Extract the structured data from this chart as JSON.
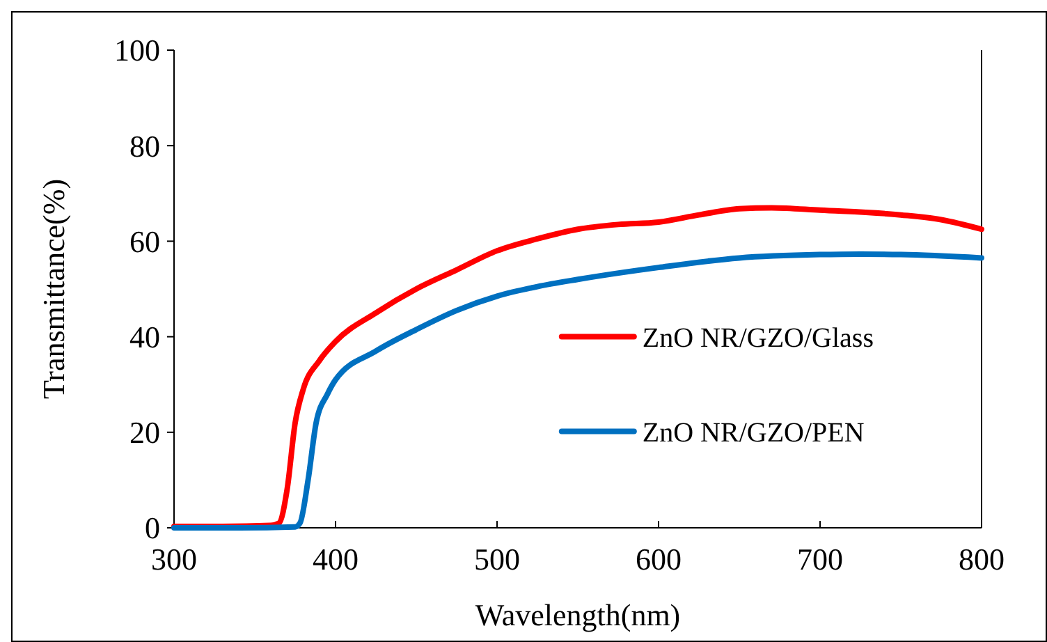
{
  "chart_data": {
    "type": "line",
    "xlabel": "Wavelength(nm)",
    "ylabel": "Transmittance(%)",
    "xlim": [
      300,
      800
    ],
    "xticks": [
      300,
      400,
      500,
      600,
      700,
      800
    ],
    "ylim": [
      0,
      100
    ],
    "yticks": [
      0,
      20,
      40,
      60,
      80,
      100
    ],
    "grid": false,
    "legend": "right",
    "marker": "none",
    "line_style": "solid",
    "series": [
      {
        "name": "ZnO NR/GZO/Glass",
        "color": "#ff0000",
        "x": [
          300,
          330,
          360,
          365,
          370,
          375,
          380,
          390,
          400,
          425,
          450,
          475,
          500,
          525,
          550,
          575,
          600,
          625,
          650,
          670,
          700,
          750,
          775,
          800
        ],
        "values": [
          0.3,
          0.3,
          0.5,
          1,
          8,
          22,
          29,
          35,
          39,
          45,
          50,
          54,
          58,
          60.5,
          62.5,
          63.5,
          64,
          65.5,
          66.8,
          67,
          66.5,
          65.5,
          64.5,
          62.5
        ]
      },
      {
        "name": "ZnO NR/GZO/PEN",
        "color": "#0070c0",
        "x": [
          300,
          340,
          375,
          378,
          383,
          388,
          395,
          400,
          425,
          450,
          475,
          500,
          525,
          550,
          600,
          650,
          700,
          725,
          750,
          800
        ],
        "values": [
          0,
          0,
          0.2,
          1,
          10,
          22,
          28,
          31,
          37,
          41.5,
          45.5,
          48.5,
          50.5,
          52,
          54.5,
          56.5,
          57.2,
          57.3,
          57.2,
          56.5
        ]
      }
    ]
  }
}
